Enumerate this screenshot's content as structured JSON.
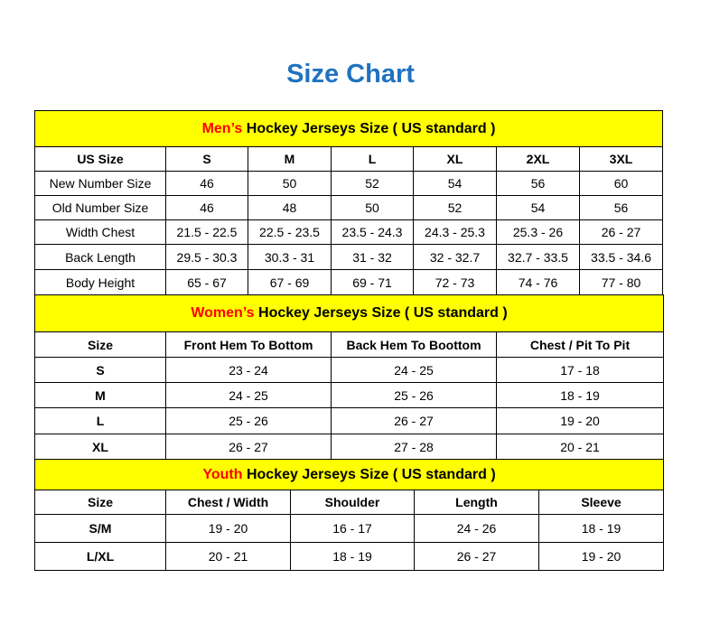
{
  "title": "Size Chart",
  "colors": {
    "title": "#1f72c0",
    "section_bg": "#ffff00",
    "highlight": "#ff0000"
  },
  "men": {
    "heading_highlight": "Men’s",
    "heading_rest": " Hockey Jerseys Size ( US standard )",
    "columns": [
      "US Size",
      "S",
      "M",
      "L",
      "XL",
      "2XL",
      "3XL"
    ],
    "rows": [
      [
        "New Number Size",
        "46",
        "50",
        "52",
        "54",
        "56",
        "60"
      ],
      [
        "Old Number Size",
        "46",
        "48",
        "50",
        "52",
        "54",
        "56"
      ],
      [
        "Width Chest",
        "21.5 - 22.5",
        "22.5 - 23.5",
        "23.5 - 24.3",
        "24.3 - 25.3",
        "25.3 - 26",
        "26 - 27"
      ],
      [
        "Back Length",
        "29.5 - 30.3",
        "30.3 - 31",
        "31 - 32",
        "32 - 32.7",
        "32.7 - 33.5",
        "33.5 - 34.6"
      ],
      [
        "Body Height",
        "65 - 67",
        "67 - 69",
        "69 - 71",
        "72 - 73",
        "74 - 76",
        "77 - 80"
      ]
    ]
  },
  "women": {
    "heading_highlight": "Women’s",
    "heading_rest": " Hockey Jerseys Size ( US standard )",
    "columns": [
      "Size",
      "Front Hem To Bottom",
      "Back Hem To Boottom",
      "Chest / Pit To Pit"
    ],
    "rows": [
      [
        "S",
        "23 - 24",
        "24 - 25",
        "17 - 18"
      ],
      [
        "M",
        "24 - 25",
        "25 - 26",
        "18 - 19"
      ],
      [
        "L",
        "25 - 26",
        "26 - 27",
        "19 - 20"
      ],
      [
        "XL",
        "26 - 27",
        "27 - 28",
        "20 - 21"
      ]
    ]
  },
  "youth": {
    "heading_highlight": "Youth",
    "heading_rest": " Hockey Jerseys Size ( US standard )",
    "columns": [
      "Size",
      "Chest / Width",
      "Shoulder",
      "Length",
      "Sleeve"
    ],
    "rows": [
      [
        "S/M",
        "19 - 20",
        "16 - 17",
        "24 - 26",
        "18 - 19"
      ],
      [
        "L/XL",
        "20 - 21",
        "18 - 19",
        "26 - 27",
        "19 - 20"
      ]
    ]
  }
}
